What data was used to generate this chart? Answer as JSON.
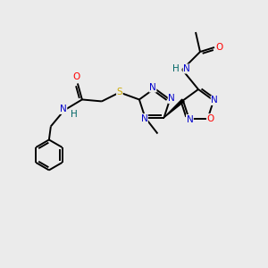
{
  "background_color": "#ebebeb",
  "atom_colors": {
    "C": "#000000",
    "N": "#0000cc",
    "O": "#ff0000",
    "S": "#ccaa00",
    "H": "#006666"
  },
  "figsize": [
    3.0,
    3.0
  ],
  "dpi": 100,
  "lw": 1.4,
  "fontsize": 7.5
}
